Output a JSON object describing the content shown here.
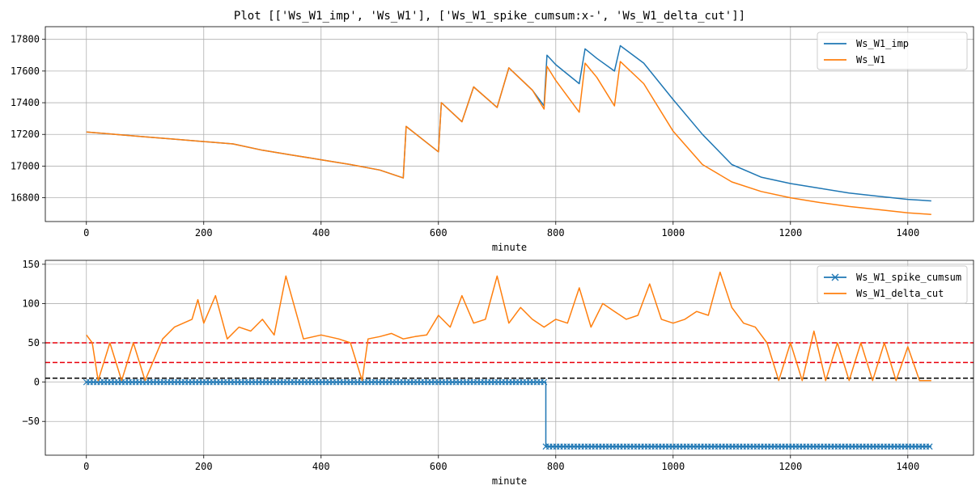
{
  "figure_title": "Plot [['Ws_W1_imp', 'Ws_W1'], ['Ws_W1_spike_cumsum:x-', 'Ws_W1_delta_cut']]",
  "colors": {
    "blue": "#1f77b4",
    "orange": "#ff7f0e",
    "red": "#e8000b",
    "black": "#000000",
    "grid": "#b0b0b0"
  },
  "chart_data": [
    {
      "type": "line",
      "xlabel": "minute",
      "ylabel": "",
      "xlim": [
        -70,
        1512
      ],
      "ylim": [
        16650,
        17880
      ],
      "grid": true,
      "legend_position": "top-right",
      "xticks": [
        0,
        200,
        400,
        600,
        800,
        1000,
        1200,
        1400
      ],
      "yticks": [
        16800,
        17000,
        17200,
        17400,
        17600,
        17800
      ],
      "xtick_labels": [
        "0",
        "200",
        "400",
        "600",
        "800",
        "1000",
        "1200",
        "1400"
      ],
      "ytick_labels": [
        "16800",
        "17000",
        "17200",
        "17400",
        "17600",
        "17800"
      ],
      "series": [
        {
          "name": "Ws_W1_imp",
          "color": "#1f77b4",
          "x": [
            0,
            50,
            100,
            150,
            200,
            250,
            300,
            350,
            400,
            450,
            500,
            540,
            545,
            600,
            605,
            640,
            660,
            700,
            720,
            760,
            780,
            785,
            800,
            840,
            850,
            870,
            900,
            910,
            950,
            1000,
            1050,
            1100,
            1150,
            1200,
            1250,
            1300,
            1350,
            1400,
            1440
          ],
          "values": [
            17215,
            17200,
            17185,
            17170,
            17155,
            17140,
            17100,
            17070,
            17040,
            17010,
            16975,
            16925,
            17250,
            17090,
            17400,
            17280,
            17500,
            17370,
            17620,
            17480,
            17380,
            17700,
            17640,
            17520,
            17740,
            17680,
            17600,
            17760,
            17650,
            17420,
            17200,
            17010,
            16930,
            16890,
            16860,
            16830,
            16810,
            16790,
            16780
          ]
        },
        {
          "name": "Ws_W1",
          "color": "#ff7f0e",
          "x": [
            0,
            50,
            100,
            150,
            200,
            250,
            300,
            350,
            400,
            450,
            500,
            540,
            545,
            600,
            605,
            640,
            660,
            700,
            720,
            760,
            780,
            785,
            800,
            840,
            850,
            870,
            900,
            910,
            950,
            1000,
            1050,
            1100,
            1150,
            1200,
            1250,
            1300,
            1350,
            1400,
            1440
          ],
          "values": [
            17215,
            17200,
            17185,
            17170,
            17155,
            17140,
            17100,
            17070,
            17040,
            17010,
            16975,
            16925,
            17250,
            17090,
            17400,
            17280,
            17500,
            17370,
            17620,
            17480,
            17360,
            17630,
            17540,
            17340,
            17650,
            17560,
            17380,
            17660,
            17520,
            17220,
            17010,
            16900,
            16840,
            16800,
            16770,
            16745,
            16725,
            16705,
            16695
          ]
        }
      ]
    },
    {
      "type": "line",
      "xlabel": "minute",
      "ylabel": "",
      "xlim": [
        -70,
        1512
      ],
      "ylim": [
        -93,
        155
      ],
      "grid": true,
      "legend_position": "top-right",
      "xticks": [
        0,
        200,
        400,
        600,
        800,
        1000,
        1200,
        1400
      ],
      "yticks": [
        -50,
        0,
        50,
        100,
        150
      ],
      "xtick_labels": [
        "0",
        "200",
        "400",
        "600",
        "800",
        "1000",
        "1200",
        "1400"
      ],
      "ytick_labels": [
        "−50",
        "0",
        "50",
        "100",
        "150"
      ],
      "hlines": [
        {
          "y": 50,
          "color": "#e8000b",
          "style": "dashed"
        },
        {
          "y": 25,
          "color": "#e8000b",
          "style": "dashed"
        },
        {
          "y": 5,
          "color": "#000000",
          "style": "dashed"
        }
      ],
      "series": [
        {
          "name": "Ws_W1_spike_cumsum",
          "color": "#1f77b4",
          "marker": "x",
          "x": [
            0,
            783,
            783,
            1440
          ],
          "values": [
            0,
            0,
            -82,
            -82
          ]
        },
        {
          "name": "Ws_W1_delta_cut",
          "color": "#ff7f0e",
          "x": [
            0,
            10,
            20,
            40,
            60,
            80,
            100,
            130,
            150,
            180,
            190,
            200,
            220,
            240,
            260,
            280,
            300,
            320,
            340,
            370,
            400,
            430,
            450,
            470,
            480,
            500,
            520,
            540,
            560,
            580,
            600,
            620,
            640,
            660,
            680,
            700,
            720,
            740,
            760,
            780,
            800,
            820,
            840,
            860,
            880,
            900,
            920,
            940,
            960,
            980,
            1000,
            1020,
            1040,
            1060,
            1080,
            1100,
            1120,
            1140,
            1160,
            1180,
            1200,
            1220,
            1240,
            1260,
            1280,
            1300,
            1320,
            1340,
            1360,
            1380,
            1400,
            1420,
            1440
          ],
          "values": [
            60,
            50,
            2,
            50,
            2,
            50,
            2,
            55,
            70,
            80,
            105,
            75,
            110,
            55,
            70,
            65,
            80,
            60,
            135,
            55,
            60,
            55,
            50,
            2,
            55,
            58,
            62,
            55,
            58,
            60,
            85,
            70,
            110,
            75,
            80,
            135,
            75,
            95,
            80,
            70,
            80,
            75,
            120,
            70,
            100,
            90,
            80,
            85,
            125,
            80,
            75,
            80,
            90,
            85,
            140,
            95,
            75,
            70,
            50,
            2,
            50,
            2,
            65,
            2,
            50,
            2,
            50,
            2,
            50,
            2,
            45,
            2,
            2
          ]
        }
      ]
    }
  ]
}
